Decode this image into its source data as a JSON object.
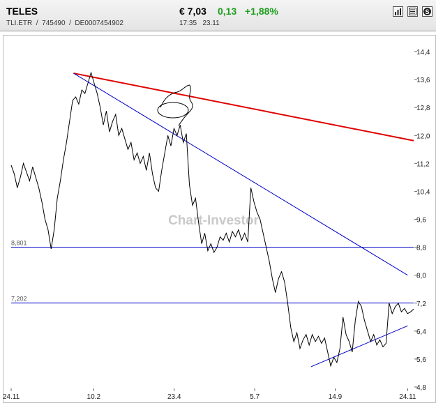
{
  "header": {
    "title": "TELES",
    "ticker": "TLI.ETR",
    "wkn": "745490",
    "isin": "DE0007454902",
    "separator": "/",
    "price": "€ 7,03",
    "change": "0,13",
    "change_pct": "+1,88%",
    "time": "17:35",
    "date": "23.11",
    "change_color": "#1e9e1e",
    "toolbar": [
      {
        "name": "bar-chart-icon"
      },
      {
        "name": "news-icon"
      },
      {
        "name": "dollar-icon"
      }
    ]
  },
  "chart_data": {
    "type": "line",
    "title": "",
    "watermark": "Chart-Investor",
    "xlabel": "",
    "ylabel": "",
    "ylim": [
      4.8,
      14.4
    ],
    "y_ticks": [
      "14,4",
      "13,6",
      "12,8",
      "12,0",
      "11,2",
      "10,4",
      "9,6",
      "8,8",
      "8,0",
      "7,2",
      "6,4",
      "5,6",
      "4,8"
    ],
    "y_tick_values": [
      14.4,
      13.6,
      12.8,
      12.0,
      11.2,
      10.4,
      9.6,
      8.8,
      8.0,
      7.2,
      6.4,
      5.6,
      4.8
    ],
    "x_ticks": [
      "24.11",
      "10.2",
      "23.4",
      "5.7",
      "14.9",
      "24.11"
    ],
    "x_tick_positions": [
      0,
      0.205,
      0.405,
      0.605,
      0.805,
      0.985
    ],
    "grid": false,
    "legend": "none",
    "line_color": "#000000",
    "series": [
      {
        "values": [
          11.15,
          10.9,
          10.5,
          10.8,
          11.2,
          10.95,
          10.7,
          11.1,
          10.8,
          10.5,
          10.1,
          9.6,
          9.3,
          8.75,
          9.3,
          10.2,
          10.7,
          11.3,
          11.8,
          12.4,
          13.0,
          13.1,
          12.9,
          13.3,
          13.2,
          13.5,
          13.8,
          13.5,
          13.2,
          12.8,
          12.3,
          12.7,
          12.1,
          12.4,
          12.6,
          12.0,
          12.2,
          11.9,
          11.6,
          11.8,
          11.3,
          11.5,
          11.2,
          11.4,
          11.0,
          11.5,
          10.9,
          10.5,
          10.4,
          11.0,
          11.5,
          12.0,
          11.7,
          12.2,
          12.0,
          12.3,
          11.8,
          12.05,
          10.6,
          10.0,
          10.2,
          9.5,
          8.9,
          9.2,
          8.7,
          8.9,
          8.65,
          8.8,
          9.1,
          9.0,
          9.2,
          8.95,
          9.25,
          9.1,
          9.3,
          9.0,
          9.2,
          8.95,
          10.5,
          10.1,
          9.8,
          9.6,
          9.2,
          8.8,
          8.4,
          7.9,
          7.5,
          7.9,
          8.1,
          7.8,
          7.2,
          6.5,
          6.1,
          6.35,
          5.9,
          6.15,
          6.3,
          6.0,
          6.3,
          6.1,
          6.25,
          6.05,
          6.2,
          5.8,
          5.4,
          5.65,
          5.5,
          5.9,
          6.8,
          6.3,
          6.1,
          5.8,
          6.7,
          7.25,
          7.1,
          6.7,
          6.4,
          6.1,
          6.3,
          6.0,
          6.15,
          5.95,
          6.05,
          7.2,
          6.9,
          7.1,
          7.2,
          6.95,
          7.05,
          6.9,
          6.95,
          7.03
        ]
      }
    ],
    "horizontal_levels": [
      {
        "label": "8,801",
        "value": 8.801,
        "color": "#0000c8"
      },
      {
        "label": "7,202",
        "value": 7.202,
        "color": "#0000c8"
      }
    ],
    "trend_lines": [
      {
        "color": "#e00000",
        "x0": 0.155,
        "y0": 13.78,
        "x1": 1.0,
        "y1": 11.85
      },
      {
        "color": "#0000c8",
        "x0": 0.155,
        "y0": 13.78,
        "x1": 0.985,
        "y1": 8.0
      },
      {
        "color": "#0000c8",
        "x0": 0.745,
        "y0": 5.38,
        "x1": 0.985,
        "y1": 6.55
      }
    ]
  }
}
